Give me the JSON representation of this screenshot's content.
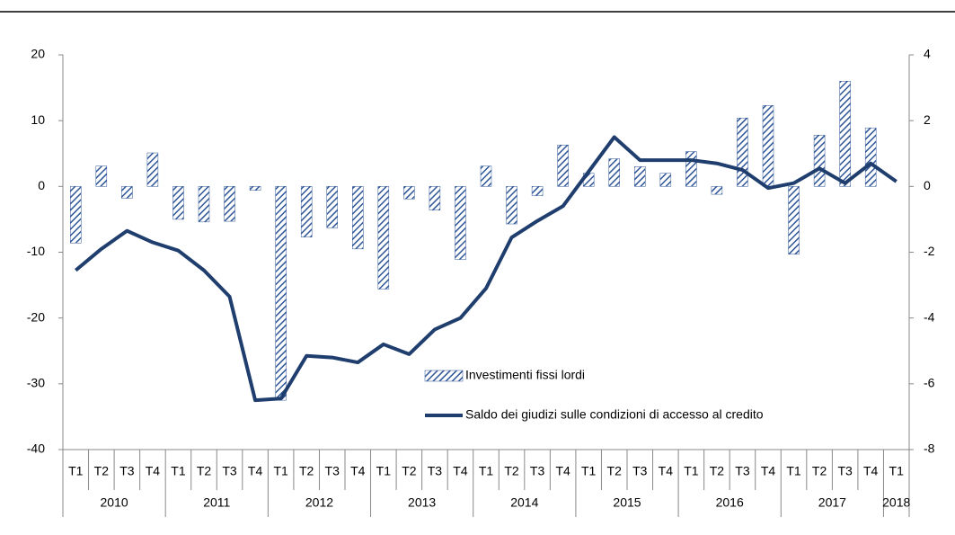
{
  "chart_data": {
    "type": "bar-line",
    "categories": [
      "T1",
      "T2",
      "T3",
      "T4",
      "T1",
      "T2",
      "T3",
      "T4",
      "T1",
      "T2",
      "T3",
      "T4",
      "T1",
      "T2",
      "T3",
      "T4",
      "T1",
      "T2",
      "T3",
      "T4",
      "T1",
      "T2",
      "T3",
      "T4",
      "T1",
      "T2",
      "T3",
      "T4",
      "T1",
      "T2",
      "T3",
      "T4",
      "T1"
    ],
    "years": [
      "2010",
      "2011",
      "2012",
      "2013",
      "2014",
      "2015",
      "2016",
      "2017",
      "2018"
    ],
    "series": [
      {
        "name": "Investimenti fissi lordi",
        "type": "bar",
        "color": "#2e5597",
        "values": [
          -8.6,
          3.1,
          -1.8,
          5.1,
          -5.0,
          -5.4,
          -5.3,
          -0.6,
          -32.5,
          -7.7,
          -6.3,
          -9.5,
          -15.6,
          -1.9,
          -3.6,
          -11.1,
          3.1,
          -5.7,
          -1.4,
          6.3,
          2.0,
          4.2,
          3.0,
          2.0,
          5.3,
          -1.2,
          10.4,
          12.3,
          -10.3,
          7.8,
          16.0,
          8.9,
          null
        ]
      },
      {
        "name": "Saldo dei giudizi sulle condizioni di accesso al credito",
        "type": "line",
        "axis": "y2",
        "color": "#1f3e6e",
        "values": [
          -2.55,
          -1.9,
          -1.35,
          -1.7,
          -1.95,
          -2.55,
          -3.35,
          -6.5,
          -6.45,
          -5.15,
          -5.2,
          -5.35,
          -4.8,
          -5.1,
          -4.35,
          -4.0,
          -3.1,
          -1.55,
          -1.05,
          -0.6,
          0.45,
          1.5,
          0.8,
          0.8,
          0.8,
          0.7,
          0.5,
          -0.05,
          0.1,
          0.55,
          0.1,
          0.7,
          0.15
        ]
      }
    ],
    "ylim": [
      -40,
      20
    ],
    "yticks": [
      -40,
      -30,
      -20,
      -10,
      0,
      10,
      20
    ],
    "y2lim": [
      -8,
      4
    ],
    "y2ticks": [
      -8,
      -6,
      -4,
      -2,
      0,
      2,
      4
    ],
    "grid": false
  }
}
